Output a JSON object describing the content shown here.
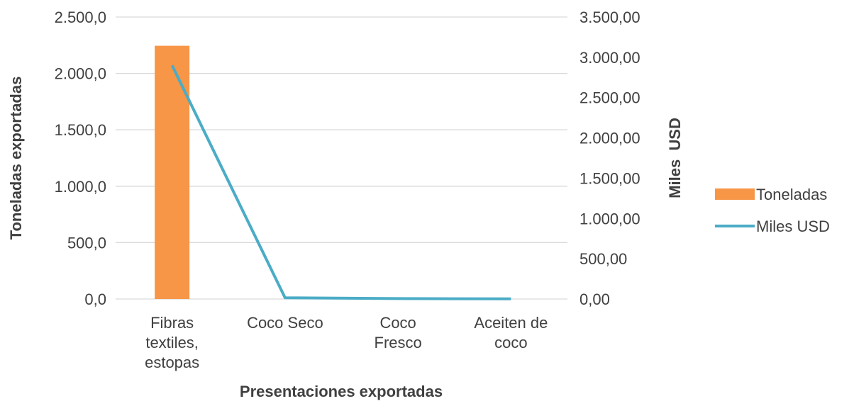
{
  "chart_data": {
    "type": "bar+line",
    "categories": [
      [
        "Fibras",
        "textiles,",
        "estopas"
      ],
      [
        "Coco Seco"
      ],
      [
        "Coco",
        "Fresco"
      ],
      [
        "Aceiten de",
        "coco"
      ]
    ],
    "series": [
      {
        "name": "Toneladas",
        "type": "bar",
        "axis": "left",
        "color": "#f79646",
        "values": [
          2245.0,
          0.0,
          0.0,
          0.0
        ]
      },
      {
        "name": "Miles USD",
        "type": "line",
        "axis": "right",
        "color": "#4bacc6",
        "values": [
          2900.0,
          15.0,
          5.0,
          2.0
        ]
      }
    ],
    "xlabel": "Presentaciones exportadas",
    "ylabel": "Toneladas exportadas",
    "y2label": "Miles  USD",
    "ylim": [
      0,
      2500
    ],
    "y2lim": [
      0,
      3500
    ],
    "yticks": [
      "0,0",
      "500,0",
      "1.000,0",
      "1.500,0",
      "2.000,0",
      "2.500,0"
    ],
    "y2ticks": [
      "0,00",
      "500,00",
      "1.000,00",
      "1.500,00",
      "2.000,00",
      "2.500,00",
      "3.000,00",
      "3.500,00"
    ],
    "grid": true,
    "legend_position": "right"
  }
}
